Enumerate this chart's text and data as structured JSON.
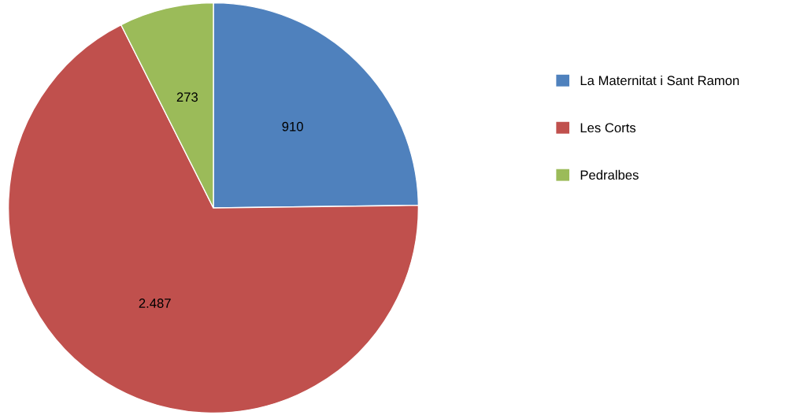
{
  "chart_data": {
    "type": "pie",
    "categories": [
      "La Maternitat i Sant Ramon",
      "Les Corts",
      "Pedralbes"
    ],
    "values": [
      910,
      2487,
      273
    ],
    "value_labels": [
      "910",
      "2.487",
      "273"
    ],
    "colors": [
      "#4f81bd",
      "#c0504d",
      "#9bbb59"
    ],
    "legend": "right"
  }
}
